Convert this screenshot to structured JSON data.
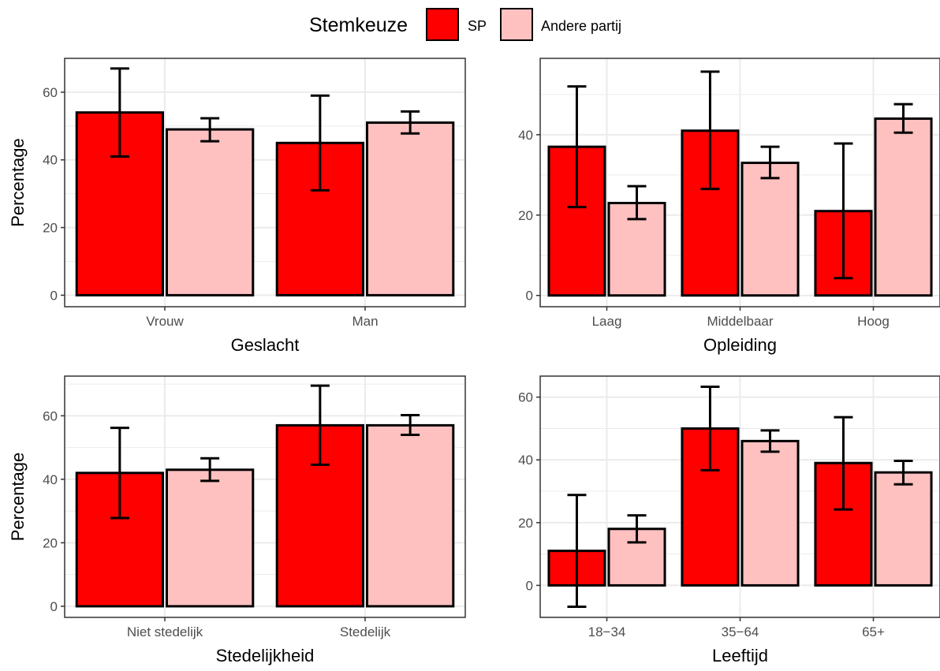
{
  "legend": {
    "title": "Stemkeuze",
    "items": [
      {
        "label": "SP",
        "color": "#ff0000"
      },
      {
        "label": "Andere partij",
        "color": "#ffc0c0"
      }
    ]
  },
  "chart_data": [
    {
      "type": "bar",
      "xlabel": "Geslacht",
      "ylabel": "Percentage",
      "categories": [
        "Vrouw",
        "Man"
      ],
      "ylim": [
        -3.4,
        70
      ],
      "yticks": [
        0,
        20,
        40,
        60
      ],
      "series": [
        {
          "name": "SP",
          "values": [
            54,
            45
          ],
          "ci_low": [
            41,
            31
          ],
          "ci_high": [
            67,
            59
          ]
        },
        {
          "name": "Andere partij",
          "values": [
            49,
            51
          ],
          "ci_low": [
            45.5,
            47.8
          ],
          "ci_high": [
            52.3,
            54.3
          ]
        }
      ]
    },
    {
      "type": "bar",
      "xlabel": "Opleiding",
      "ylabel": "",
      "categories": [
        "Laag",
        "Middelbaar",
        "Hoog"
      ],
      "ylim": [
        -2.8,
        59
      ],
      "yticks": [
        0,
        20,
        40
      ],
      "series": [
        {
          "name": "SP",
          "values": [
            37,
            41,
            21
          ],
          "ci_low": [
            22,
            26.5,
            4.3
          ],
          "ci_high": [
            52,
            55.7,
            37.8
          ]
        },
        {
          "name": "Andere partij",
          "values": [
            23,
            33,
            44
          ],
          "ci_low": [
            19,
            29.2,
            40.5
          ],
          "ci_high": [
            27.2,
            37,
            47.6
          ]
        }
      ]
    },
    {
      "type": "bar",
      "xlabel": "Stedelijkheid",
      "ylabel": "Percentage",
      "categories": [
        "Niet stedelijk",
        "Stedelijk"
      ],
      "ylim": [
        -3.5,
        72.5
      ],
      "yticks": [
        0,
        20,
        40,
        60
      ],
      "series": [
        {
          "name": "SP",
          "values": [
            42,
            57
          ],
          "ci_low": [
            27.8,
            44.6
          ],
          "ci_high": [
            56.2,
            69.5
          ]
        },
        {
          "name": "Andere partij",
          "values": [
            43,
            57
          ],
          "ci_low": [
            39.5,
            54
          ],
          "ci_high": [
            46.6,
            60.2
          ]
        }
      ]
    },
    {
      "type": "bar",
      "xlabel": "Leeftijd",
      "ylabel": "",
      "categories": [
        "18−34",
        "35−64",
        "65+"
      ],
      "ylim": [
        -10.2,
        66.7
      ],
      "yticks": [
        0,
        20,
        40,
        60
      ],
      "series": [
        {
          "name": "SP",
          "values": [
            11,
            50,
            39
          ],
          "ci_low": [
            -6.8,
            36.7,
            24.2
          ],
          "ci_high": [
            28.8,
            63.3,
            53.6
          ]
        },
        {
          "name": "Andere partij",
          "values": [
            18,
            46,
            36
          ],
          "ci_low": [
            13.7,
            42.6,
            32.2
          ],
          "ci_high": [
            22.3,
            49.4,
            39.7
          ]
        }
      ]
    }
  ]
}
